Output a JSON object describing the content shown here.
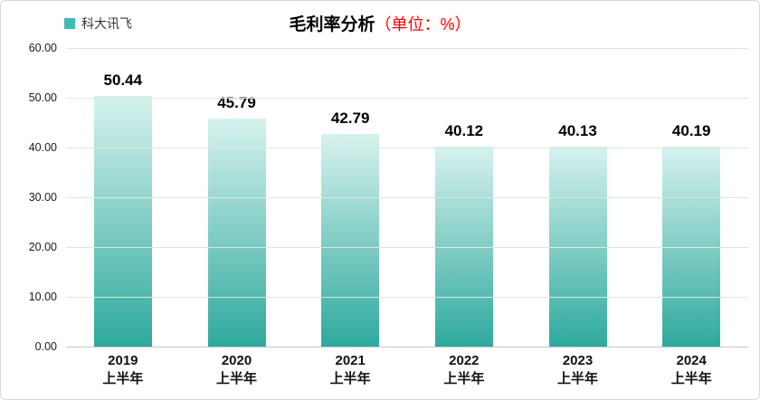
{
  "legend": {
    "series_label": "科大讯飞",
    "swatch_color": "#3fbcb1"
  },
  "title": {
    "main": "毛利率分析",
    "unit": "（单位：%）",
    "unit_color": "#ff0000"
  },
  "colors": {
    "bar_gradient_top": "#d7f2ee",
    "bar_gradient_bottom": "#2ea99d",
    "gridline": "#d9ead9",
    "axis_line": "#c8c8c8"
  },
  "chart_data": {
    "type": "bar",
    "title": "毛利率分析（单位：%）",
    "series": [
      {
        "name": "科大讯飞",
        "values": [
          50.44,
          45.79,
          42.79,
          40.12,
          40.13,
          40.19
        ],
        "value_labels": [
          "50.44",
          "45.79",
          "42.79",
          "40.12",
          "40.13",
          "40.19"
        ]
      }
    ],
    "categories": [
      {
        "year": "2019",
        "period": "上半年"
      },
      {
        "year": "2020",
        "period": "上半年"
      },
      {
        "year": "2021",
        "period": "上半年"
      },
      {
        "year": "2022",
        "period": "上半年"
      },
      {
        "year": "2023",
        "period": "上半年"
      },
      {
        "year": "2024",
        "period": "上半年"
      }
    ],
    "xlabel": "",
    "ylabel": "",
    "ylim": [
      0,
      60
    ],
    "yticks": [
      "60.00",
      "50.00",
      "40.00",
      "30.00",
      "20.00",
      "10.00",
      "0.00"
    ],
    "grid": true,
    "legend_position": "top-left"
  }
}
